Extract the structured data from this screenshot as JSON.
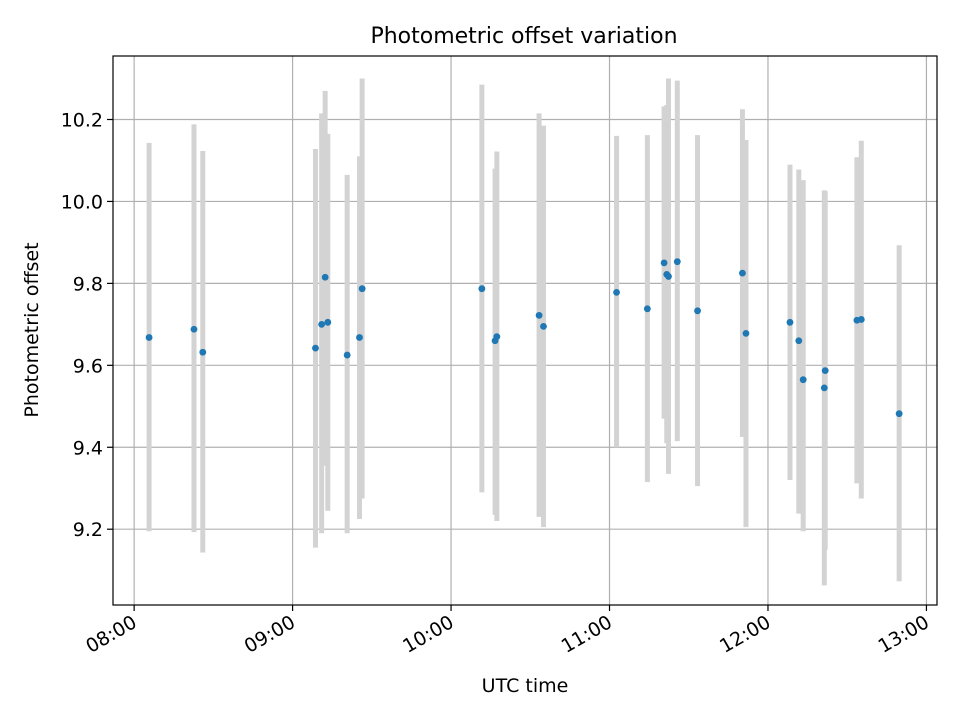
{
  "chart_data": {
    "type": "scatter",
    "title": "Photometric offset variation",
    "xlabel": "UTC time",
    "ylabel": "Photometric offset",
    "xlim": [
      "07:52",
      "13:04"
    ],
    "ylim": [
      9.015,
      10.355
    ],
    "x_ticks": [
      "08:00",
      "09:00",
      "10:00",
      "11:00",
      "12:00",
      "13:00"
    ],
    "y_ticks": [
      9.2,
      9.4,
      9.6,
      9.8,
      10.0,
      10.2
    ],
    "grid": true,
    "colors": {
      "points": "#1f77b4",
      "errorbars": "#d3d3d3",
      "grid": "#b0b0b0"
    },
    "points": [
      {
        "x": "08:05:40",
        "y": 9.668,
        "ylow": 9.195,
        "yhigh": 10.143
      },
      {
        "x": "08:22:40",
        "y": 9.688,
        "ylow": 9.193,
        "yhigh": 10.188
      },
      {
        "x": "08:26:00",
        "y": 9.632,
        "ylow": 9.143,
        "yhigh": 10.123
      },
      {
        "x": "09:08:40",
        "y": 9.642,
        "ylow": 9.155,
        "yhigh": 10.128
      },
      {
        "x": "09:11:00",
        "y": 9.7,
        "ylow": 9.19,
        "yhigh": 10.215
      },
      {
        "x": "09:12:20",
        "y": 9.815,
        "ylow": 9.355,
        "yhigh": 10.27
      },
      {
        "x": "09:13:20",
        "y": 9.705,
        "ylow": 9.245,
        "yhigh": 10.165
      },
      {
        "x": "09:20:40",
        "y": 9.625,
        "ylow": 9.19,
        "yhigh": 10.065
      },
      {
        "x": "09:25:20",
        "y": 9.668,
        "ylow": 9.225,
        "yhigh": 10.11
      },
      {
        "x": "09:26:20",
        "y": 9.787,
        "ylow": 9.275,
        "yhigh": 10.3
      },
      {
        "x": "10:11:40",
        "y": 9.787,
        "ylow": 9.29,
        "yhigh": 10.285
      },
      {
        "x": "10:16:40",
        "y": 9.66,
        "ylow": 9.235,
        "yhigh": 10.08
      },
      {
        "x": "10:17:20",
        "y": 9.67,
        "ylow": 9.22,
        "yhigh": 10.122
      },
      {
        "x": "10:33:20",
        "y": 9.722,
        "ylow": 9.23,
        "yhigh": 10.215
      },
      {
        "x": "10:35:00",
        "y": 9.695,
        "ylow": 9.205,
        "yhigh": 10.185
      },
      {
        "x": "11:02:40",
        "y": 9.778,
        "ylow": 9.4,
        "yhigh": 10.16
      },
      {
        "x": "11:14:20",
        "y": 9.738,
        "ylow": 9.315,
        "yhigh": 10.162
      },
      {
        "x": "11:20:40",
        "y": 9.85,
        "ylow": 9.47,
        "yhigh": 10.232
      },
      {
        "x": "11:21:40",
        "y": 9.822,
        "ylow": 9.41,
        "yhigh": 10.235
      },
      {
        "x": "11:22:20",
        "y": 9.817,
        "ylow": 9.335,
        "yhigh": 10.3
      },
      {
        "x": "11:25:40",
        "y": 9.853,
        "ylow": 9.415,
        "yhigh": 10.295
      },
      {
        "x": "11:33:20",
        "y": 9.733,
        "ylow": 9.305,
        "yhigh": 10.162
      },
      {
        "x": "11:50:20",
        "y": 9.825,
        "ylow": 9.425,
        "yhigh": 10.225
      },
      {
        "x": "11:51:40",
        "y": 9.678,
        "ylow": 9.205,
        "yhigh": 10.15
      },
      {
        "x": "12:08:20",
        "y": 9.705,
        "ylow": 9.32,
        "yhigh": 10.09
      },
      {
        "x": "12:11:40",
        "y": 9.66,
        "ylow": 9.238,
        "yhigh": 10.078
      },
      {
        "x": "12:13:20",
        "y": 9.565,
        "ylow": 9.195,
        "yhigh": 10.052
      },
      {
        "x": "12:21:20",
        "y": 9.545,
        "ylow": 9.063,
        "yhigh": 10.027
      },
      {
        "x": "12:21:40",
        "y": 9.587,
        "ylow": 9.15,
        "yhigh": 10.025
      },
      {
        "x": "12:33:40",
        "y": 9.71,
        "ylow": 9.312,
        "yhigh": 10.108
      },
      {
        "x": "12:35:20",
        "y": 9.712,
        "ylow": 9.275,
        "yhigh": 10.148
      },
      {
        "x": "12:49:40",
        "y": 9.482,
        "ylow": 9.073,
        "yhigh": 9.893
      }
    ]
  }
}
